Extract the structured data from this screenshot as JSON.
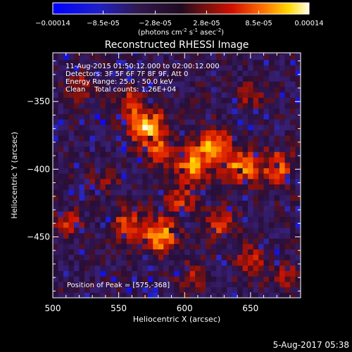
{
  "chart_data": {
    "type": "heatmap",
    "title": "Reconstructed RHESSI Image",
    "xlabel": "Heliocentric X (arcsec)",
    "ylabel": "Heliocentric Y (arcsec)",
    "xlim": [
      500,
      688
    ],
    "ylim": [
      -495,
      -314
    ],
    "xticks": [
      500,
      550,
      600,
      650
    ],
    "yticks": [
      -350,
      -400,
      -450
    ],
    "colorbar": {
      "min": -0.00014,
      "max": 0.00014,
      "ticks": [
        "-0.00014",
        "-8.5e-05",
        "-2.8e-05",
        "2.8e-05",
        "8.5e-05",
        "0.00014"
      ],
      "tick_values": [
        -0.00014,
        -8.5e-05,
        -2.8e-05,
        2.8e-05,
        8.5e-05,
        0.00014
      ],
      "unit_prefix": "(photons cm",
      "unit_exp1": "-2",
      "unit_mid": " s",
      "unit_exp2": "-1",
      "unit_mid2": " asec",
      "unit_exp3": "-2",
      "unit_suffix": ")"
    },
    "annotations": [
      "11-Aug-2015 01:50:12.000 to 02:00:12.000",
      "Detectors: 3F 5F 6F 7F 8F 9F, Att 0",
      "Energy Range: 25.0 - 50.0 keV",
      "Clean    Total counts: 1.26E+04"
    ],
    "peak_label": "Position of Peak = [575,-368]",
    "peak": [
      575,
      -368
    ],
    "sources": [
      {
        "x": 571,
        "y": -368,
        "sigma": 9,
        "amp": 1.0
      },
      {
        "x": 583,
        "y": -386,
        "sigma": 8,
        "amp": 0.55
      },
      {
        "x": 558,
        "y": -350,
        "sigma": 7,
        "amp": 0.45
      },
      {
        "x": 623,
        "y": -383,
        "sigma": 9,
        "amp": 0.8
      },
      {
        "x": 606,
        "y": -397,
        "sigma": 9,
        "amp": 0.72
      },
      {
        "x": 643,
        "y": -398,
        "sigma": 9,
        "amp": 0.72
      },
      {
        "x": 670,
        "y": -398,
        "sigma": 9,
        "amp": 0.65
      },
      {
        "x": 596,
        "y": -422,
        "sigma": 8,
        "amp": 0.5
      },
      {
        "x": 581,
        "y": -449,
        "sigma": 9,
        "amp": 0.9
      },
      {
        "x": 556,
        "y": -440,
        "sigma": 8,
        "amp": 0.55
      },
      {
        "x": 627,
        "y": -440,
        "sigma": 8,
        "amp": 0.55
      },
      {
        "x": 512,
        "y": -438,
        "sigma": 7,
        "amp": 0.5
      },
      {
        "x": 520,
        "y": -338,
        "sigma": 7,
        "amp": 0.45
      },
      {
        "x": 650,
        "y": -345,
        "sigma": 7,
        "amp": 0.35
      },
      {
        "x": 650,
        "y": -468,
        "sigma": 8,
        "amp": 0.45
      },
      {
        "x": 676,
        "y": -478,
        "sigma": 7,
        "amp": 0.45
      },
      {
        "x": 607,
        "y": -478,
        "sigma": 7,
        "amp": 0.4
      },
      {
        "x": 540,
        "y": -408,
        "sigma": 7,
        "amp": 0.35
      }
    ],
    "grid": false
  },
  "footer": {
    "timestamp": "5-Aug-2017 05:38"
  }
}
